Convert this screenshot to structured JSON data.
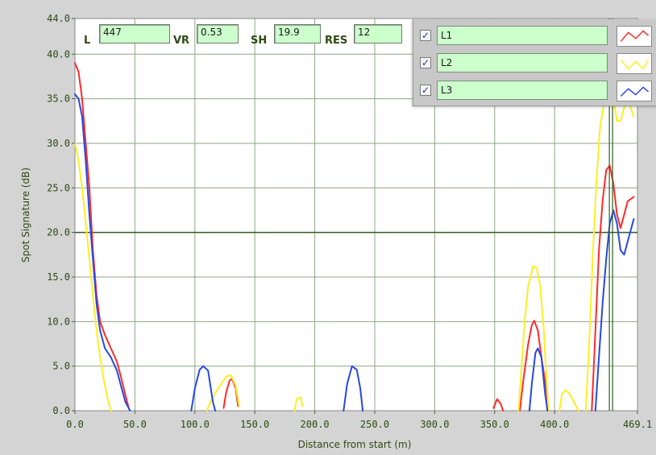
{
  "indicators": {
    "l": {
      "label": "L",
      "value": "447"
    },
    "vr": {
      "label": "VR",
      "value": "0.53"
    },
    "sh": {
      "label": "SH",
      "value": "19.9"
    },
    "res": {
      "label": "RES",
      "value": "12"
    }
  },
  "legend": [
    {
      "name": "L1",
      "checked": true,
      "color": "#ff2a2a"
    },
    {
      "name": "L2",
      "checked": true,
      "color": "#ffee22"
    },
    {
      "name": "L3",
      "checked": true,
      "color": "#2848e0"
    }
  ],
  "chart_data": {
    "type": "line",
    "xlabel": "Distance from start (m)",
    "ylabel": "Spot Signature (dB)",
    "xlim": [
      0,
      469.1
    ],
    "ylim": [
      0,
      44
    ],
    "x_ticks": [
      "0.0",
      "50.0",
      "100.0",
      "150.0",
      "200.0",
      "250.0",
      "300.0",
      "350.0",
      "400.0",
      "469.1"
    ],
    "y_ticks": [
      "0.0",
      "5.0",
      "10.0",
      "15.0",
      "20.0",
      "25.0",
      "30.0",
      "35.0",
      "40.0",
      "44.0"
    ],
    "grid": true,
    "threshold_y": 20,
    "cursor_x": 447,
    "series": [
      {
        "name": "L1",
        "color": "#ff2a2a",
        "segments": [
          [
            [
              0,
              39
            ],
            [
              3,
              38
            ],
            [
              6,
              35
            ],
            [
              9,
              30
            ],
            [
              12,
              25
            ],
            [
              15,
              18
            ],
            [
              18,
              13
            ],
            [
              21,
              10
            ],
            [
              25,
              8.5
            ],
            [
              30,
              7
            ],
            [
              35,
              5.5
            ],
            [
              38,
              4
            ],
            [
              42,
              1.8
            ],
            [
              45,
              0.2
            ]
          ],
          [
            [
              124,
              0.3
            ],
            [
              126,
              2
            ],
            [
              129,
              3.4
            ],
            [
              131,
              3.6
            ],
            [
              134,
              2.5
            ],
            [
              136,
              0.5
            ]
          ],
          [
            [
              349,
              0.3
            ],
            [
              352,
              1.3
            ],
            [
              355,
              0.8
            ],
            [
              357,
              0
            ]
          ],
          [
            [
              371,
              0
            ],
            [
              374,
              3.5
            ],
            [
              378,
              7.5
            ],
            [
              381,
              9.6
            ],
            [
              383,
              10.1
            ],
            [
              386,
              9
            ],
            [
              389,
              6
            ],
            [
              393,
              2.5
            ],
            [
              395,
              0
            ]
          ],
          [
            [
              431,
              0
            ],
            [
              434,
              9
            ],
            [
              437,
              18
            ],
            [
              440,
              23.5
            ],
            [
              443,
              27
            ],
            [
              446,
              27.5
            ],
            [
              449,
              25.5
            ],
            [
              452,
              22
            ],
            [
              455,
              20.5
            ],
            [
              458,
              22
            ],
            [
              461,
              23.5
            ],
            [
              466,
              24
            ]
          ]
        ]
      },
      {
        "name": "L2",
        "color": "#ffee22",
        "segments": [
          [
            [
              0,
              30
            ],
            [
              3,
              28
            ],
            [
              6,
              25
            ],
            [
              9,
              21
            ],
            [
              12,
              17
            ],
            [
              15,
              13
            ],
            [
              18,
              9
            ],
            [
              21,
              6
            ],
            [
              24,
              3.5
            ],
            [
              27,
              1.5
            ],
            [
              30,
              0
            ]
          ],
          [
            [
              110,
              0
            ],
            [
              113,
              1
            ],
            [
              117,
              2
            ],
            [
              121,
              2.8
            ],
            [
              126,
              3.8
            ],
            [
              130,
              4
            ],
            [
              134,
              2.8
            ],
            [
              137,
              0.5
            ]
          ],
          [
            [
              183,
              0
            ],
            [
              185,
              1.3
            ],
            [
              188,
              1.5
            ],
            [
              190,
              0.5
            ]
          ],
          [
            [
              370,
              0
            ],
            [
              372,
              4
            ],
            [
              375,
              10
            ],
            [
              378,
              14
            ],
            [
              382,
              16.2
            ],
            [
              385,
              16
            ],
            [
              388,
              14
            ],
            [
              391,
              9
            ],
            [
              393,
              4
            ],
            [
              395,
              0
            ]
          ],
          [
            [
              404,
              0
            ],
            [
              406,
              1.8
            ],
            [
              409,
              2.3
            ],
            [
              412,
              2
            ],
            [
              416,
              1
            ],
            [
              420,
              0
            ]
          ],
          [
            [
              426,
              0
            ],
            [
              429,
              8
            ],
            [
              432,
              18
            ],
            [
              435,
              26
            ],
            [
              438,
              32
            ],
            [
              442,
              35
            ],
            [
              446,
              37
            ],
            [
              449,
              35
            ],
            [
              452,
              32.5
            ],
            [
              455,
              32.5
            ],
            [
              458,
              34
            ],
            [
              461,
              35
            ],
            [
              466,
              33
            ]
          ]
        ]
      },
      {
        "name": "L3",
        "color": "#2848e0",
        "segments": [
          [
            [
              0,
              35.5
            ],
            [
              3,
              35
            ],
            [
              6,
              33
            ],
            [
              9,
              28
            ],
            [
              12,
              22
            ],
            [
              15,
              17
            ],
            [
              18,
              12
            ],
            [
              21,
              9
            ],
            [
              25,
              7
            ],
            [
              30,
              6
            ],
            [
              35,
              4.5
            ],
            [
              38,
              3
            ],
            [
              42,
              1
            ],
            [
              46,
              0
            ]
          ],
          [
            [
              97,
              0
            ],
            [
              100,
              2.5
            ],
            [
              104,
              4.6
            ],
            [
              107,
              5
            ],
            [
              111,
              4.5
            ],
            [
              115,
              1
            ],
            [
              117,
              0
            ]
          ],
          [
            [
              224,
              0
            ],
            [
              227,
              3
            ],
            [
              231,
              5
            ],
            [
              235,
              4.6
            ],
            [
              238,
              2.5
            ],
            [
              240,
              0
            ]
          ],
          [
            [
              379,
              0
            ],
            [
              381,
              3
            ],
            [
              384,
              6.5
            ],
            [
              386,
              7
            ],
            [
              389,
              6
            ],
            [
              392,
              2
            ],
            [
              394,
              0
            ]
          ],
          [
            [
              434,
              0
            ],
            [
              437,
              6
            ],
            [
              440,
              12
            ],
            [
              443,
              17
            ],
            [
              446,
              21
            ],
            [
              449,
              22.5
            ],
            [
              452,
              21
            ],
            [
              455,
              18
            ],
            [
              458,
              17.5
            ],
            [
              461,
              19
            ],
            [
              466,
              21.5
            ]
          ]
        ]
      }
    ]
  }
}
